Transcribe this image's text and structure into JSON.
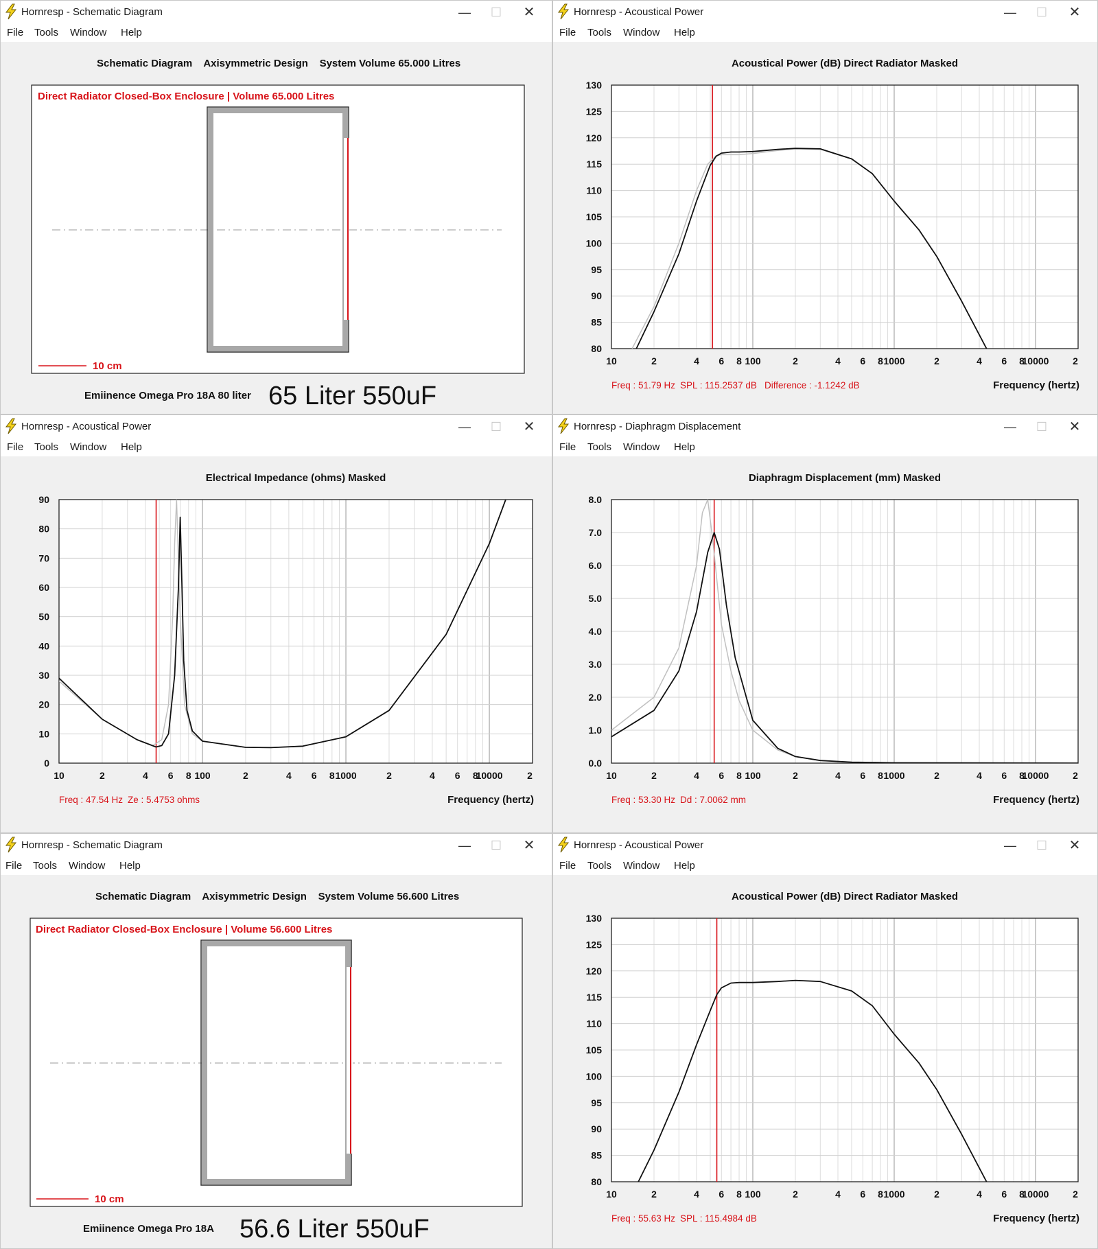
{
  "menu": [
    "File",
    "Tools",
    "Window",
    "Help"
  ],
  "colors": {
    "accent_red": "#d8141a",
    "curve_primary": "#111111",
    "curve_reference": "#c0c0c0",
    "grid": "#d0d0d0",
    "enclosure_wall": "#a8a8a8"
  },
  "icons": {
    "app": "lightning-bolt-icon",
    "minimize": "minimize-icon",
    "maximize": "maximize-icon",
    "close": "close-icon"
  },
  "windows": [
    {
      "id": "schematic-65",
      "type": "schematic",
      "title": "Hornresp - Schematic Diagram",
      "heading": "Schematic Diagram    Axisymmetric Design    System Volume 65.000 Litres",
      "diagram_title": "Direct Radiator Closed-Box Enclosure | Volume 65.000 Litres",
      "scale_label": "10 cm",
      "caption_small": "Emiinence Omega Pro 18A 80 liter",
      "caption_large": "65 Liter 550uF"
    },
    {
      "id": "power-65",
      "type": "chart",
      "title": "Hornresp - Acoustical Power",
      "heading": "Acoustical Power (dB)    Direct Radiator    Masked",
      "status": [
        "Freq : 51.79 Hz",
        "SPL : 115.2537 dB",
        "Difference : -1.1242 dB"
      ],
      "x_axis_label": "Frequency (hertz)",
      "chart_data": {
        "type": "line",
        "title": "Acoustical Power (dB)",
        "xlabel": "Frequency (hertz)",
        "xscale": "log",
        "xlim": [
          10,
          20000
        ],
        "x_tick_labels": [
          "10",
          "2",
          "4",
          "6",
          "8",
          "100",
          "2",
          "4",
          "6",
          "8",
          "1000",
          "2",
          "4",
          "6",
          "8",
          "10000",
          "2"
        ],
        "ylim": [
          80,
          130
        ],
        "yticks": [
          80,
          85,
          90,
          95,
          100,
          105,
          110,
          115,
          120,
          125,
          130
        ],
        "y_decimals": 0,
        "cursor_x": 51.79,
        "grid": true,
        "series": [
          {
            "role": "reference",
            "color": "#c0c0c0",
            "x": [
              14,
              20,
              30,
              40,
              48,
              55,
              60,
              80,
              100,
              150,
              200,
              300,
              500,
              700,
              1000,
              1500,
              2000,
              3000,
              4500
            ],
            "y": [
              80,
              88,
              100,
              110,
              115,
              116.6,
              116.8,
              116.8,
              117,
              117.6,
              117.9,
              117.8,
              116,
              113.2,
              108,
              102.5,
              97.5,
              89,
              80
            ]
          },
          {
            "role": "primary",
            "color": "#111111",
            "x": [
              15,
              20,
              30,
              40,
              50,
              55,
              60,
              70,
              80,
              100,
              150,
              200,
              300,
              500,
              700,
              1000,
              1500,
              2000,
              3000,
              4500
            ],
            "y": [
              80,
              87,
              98,
              108,
              114.8,
              116.5,
              117.1,
              117.3,
              117.3,
              117.4,
              117.8,
              118,
              117.9,
              116,
              113.2,
              108,
              102.5,
              97.5,
              89,
              80
            ]
          }
        ]
      }
    },
    {
      "id": "impedance",
      "type": "chart",
      "title": "Hornresp - Acoustical Power",
      "heading": "Electrical Impedance (ohms)    Masked",
      "status": [
        "Freq : 47.54 Hz",
        "Ze : 5.4753 ohms"
      ],
      "x_axis_label": "Frequency (hertz)",
      "chart_data": {
        "type": "line",
        "title": "Electrical Impedance (ohms)",
        "xlabel": "Frequency (hertz)",
        "xscale": "log",
        "xlim": [
          10,
          20000
        ],
        "x_tick_labels": [
          "10",
          "2",
          "4",
          "6",
          "8",
          "100",
          "2",
          "4",
          "6",
          "8",
          "1000",
          "2",
          "4",
          "6",
          "8",
          "10000",
          "2"
        ],
        "ylim": [
          0,
          90
        ],
        "yticks": [
          0,
          10,
          20,
          30,
          40,
          50,
          60,
          70,
          80,
          90
        ],
        "y_decimals": 0,
        "cursor_x": 47.54,
        "grid": true,
        "series": [
          {
            "role": "reference",
            "color": "#c0c0c0",
            "x": [
              10,
              20,
              35,
              45,
              52,
              58,
              62,
              64,
              66,
              70,
              75,
              85,
              100,
              200,
              300,
              500,
              1000,
              2000,
              5000,
              10000,
              13000
            ],
            "y": [
              28,
              15,
              8,
              6,
              8,
              20,
              50,
              75,
              90,
              50,
              20,
              10,
              7.5,
              5.4,
              5.3,
              5.8,
              9,
              18,
              44,
              75,
              90
            ]
          },
          {
            "role": "primary",
            "color": "#111111",
            "x": [
              10,
              20,
              35,
              47.5,
              52,
              58,
              64,
              68,
              70,
              72,
              74,
              78,
              85,
              100,
              200,
              300,
              500,
              1000,
              2000,
              5000,
              10000,
              13000
            ],
            "y": [
              29,
              15,
              8,
              5.5,
              6,
              10,
              30,
              60,
              84,
              60,
              35,
              18,
              11,
              7.5,
              5.4,
              5.3,
              5.8,
              9,
              18,
              44,
              75,
              90
            ]
          }
        ]
      }
    },
    {
      "id": "displacement",
      "type": "chart",
      "title": "Hornresp - Diaphragm Displacement",
      "heading": "Diaphragm Displacement (mm)    Masked",
      "status": [
        "Freq : 53.30 Hz",
        "Dd : 7.0062 mm"
      ],
      "x_axis_label": "Frequency (hertz)",
      "chart_data": {
        "type": "line",
        "title": "Diaphragm Displacement (mm)",
        "xlabel": "Frequency (hertz)",
        "xscale": "log",
        "xlim": [
          10,
          20000
        ],
        "x_tick_labels": [
          "10",
          "2",
          "4",
          "6",
          "8",
          "100",
          "2",
          "4",
          "6",
          "8",
          "1000",
          "2",
          "4",
          "6",
          "8",
          "10000",
          "2"
        ],
        "ylim": [
          0,
          8
        ],
        "yticks": [
          0,
          1,
          2,
          3,
          4,
          5,
          6,
          7,
          8
        ],
        "y_decimals": 1,
        "cursor_x": 53.3,
        "grid": true,
        "series": [
          {
            "role": "reference",
            "color": "#c0c0c0",
            "x": [
              10,
              20,
              30,
              40,
              44,
              48,
              52,
              60,
              70,
              80,
              100,
              150,
              200,
              300,
              500,
              1000,
              20000
            ],
            "y": [
              1.0,
              2.0,
              3.5,
              6.0,
              7.6,
              8.0,
              6.8,
              4.2,
              2.8,
              1.9,
              1.0,
              0.4,
              0.2,
              0.08,
              0.03,
              0.01,
              0
            ]
          },
          {
            "role": "primary",
            "color": "#111111",
            "x": [
              10,
              20,
              30,
              40,
              48,
              53.3,
              58,
              65,
              75,
              100,
              150,
              200,
              300,
              500,
              1000,
              20000
            ],
            "y": [
              0.8,
              1.6,
              2.8,
              4.6,
              6.4,
              7.0,
              6.5,
              4.8,
              3.2,
              1.3,
              0.45,
              0.2,
              0.08,
              0.03,
              0.01,
              0
            ]
          }
        ]
      }
    },
    {
      "id": "schematic-56",
      "type": "schematic",
      "title": "Hornresp - Schematic Diagram",
      "heading": "Schematic Diagram    Axisymmetric Design    System Volume 56.600 Litres",
      "diagram_title": "Direct Radiator Closed-Box Enclosure | Volume 56.600 Litres",
      "scale_label": "10 cm",
      "caption_small": "Emiinence Omega Pro 18A",
      "caption_large": "56.6 Liter 550uF"
    },
    {
      "id": "power-56",
      "type": "chart",
      "title": "Hornresp - Acoustical Power",
      "heading": "Acoustical Power (dB)    Direct Radiator    Masked",
      "status": [
        "Freq : 55.63 Hz",
        "SPL : 115.4984 dB"
      ],
      "x_axis_label": "Frequency (hertz)",
      "chart_data": {
        "type": "line",
        "title": "Acoustical Power (dB)",
        "xlabel": "Frequency (hertz)",
        "xscale": "log",
        "xlim": [
          10,
          20000
        ],
        "x_tick_labels": [
          "10",
          "2",
          "4",
          "6",
          "8",
          "100",
          "2",
          "4",
          "6",
          "8",
          "1000",
          "2",
          "4",
          "6",
          "8",
          "10000",
          "2"
        ],
        "ylim": [
          80,
          130
        ],
        "yticks": [
          80,
          85,
          90,
          95,
          100,
          105,
          110,
          115,
          120,
          125,
          130
        ],
        "y_decimals": 0,
        "cursor_x": 55.63,
        "grid": true,
        "series": [
          {
            "role": "primary",
            "color": "#111111",
            "x": [
              15.5,
              20,
              30,
              40,
              50,
              55.63,
              60,
              70,
              80,
              100,
              150,
              200,
              300,
              500,
              700,
              1000,
              1500,
              2000,
              3000,
              4500
            ],
            "y": [
              80,
              86,
              97,
              106,
              112.5,
              115.5,
              116.8,
              117.7,
              117.8,
              117.8,
              118,
              118.2,
              118,
              116.2,
              113.4,
              108,
              102.5,
              97.5,
              89,
              80
            ]
          }
        ]
      }
    }
  ]
}
